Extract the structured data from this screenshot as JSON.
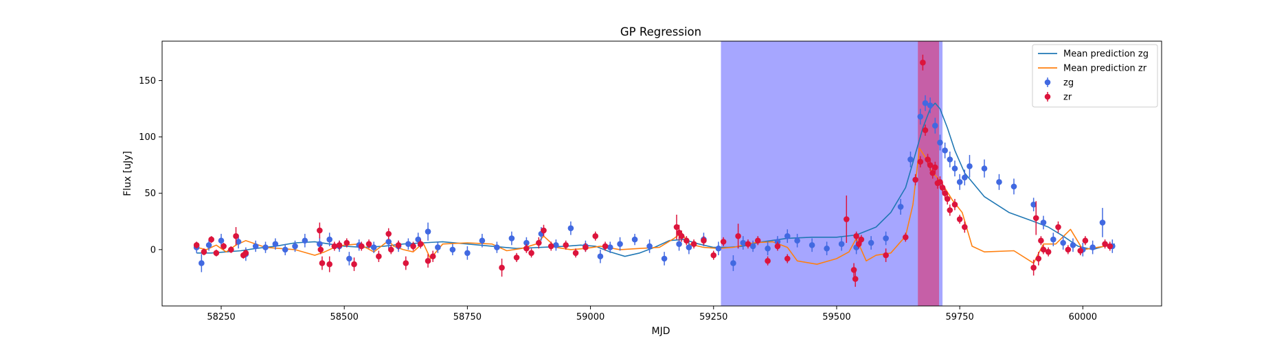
{
  "chart_data": {
    "type": "scatter",
    "title": "GP Regression",
    "xlabel": "MJD",
    "ylabel": "Flux [uJy]",
    "xlim": [
      58130,
      60160
    ],
    "ylim": [
      -50,
      185
    ],
    "xticks": [
      58250,
      58500,
      58750,
      59000,
      59250,
      59500,
      59750,
      60000
    ],
    "yticks": [
      0,
      50,
      100,
      150
    ],
    "grid": false,
    "legend_position": "upper right",
    "shaded_regions": [
      {
        "x0": 59265,
        "x1": 59715,
        "color": "#7777ff",
        "opacity": 0.65
      },
      {
        "x0": 59665,
        "x1": 59708,
        "color": "#e0245e",
        "opacity": 0.55
      }
    ],
    "series": [
      {
        "name": "Mean prediction zg",
        "kind": "line",
        "color": "#1f77b4",
        "x": [
          58200,
          58230,
          58260,
          58290,
          58320,
          58360,
          58400,
          58440,
          58470,
          58500,
          58540,
          58580,
          58620,
          58660,
          58700,
          58750,
          58800,
          58850,
          58900,
          58950,
          58980,
          59010,
          59040,
          59070,
          59100,
          59130,
          59160,
          59190,
          59220,
          59250,
          59280,
          59310,
          59350,
          59400,
          59450,
          59500,
          59540,
          59580,
          59610,
          59640,
          59660,
          59675,
          59690,
          59700,
          59710,
          59725,
          59740,
          59760,
          59800,
          59850,
          59900,
          59930,
          59960,
          59990,
          60020,
          60050,
          60065
        ],
        "y": [
          -3,
          -3,
          -2,
          -1,
          1,
          3,
          6,
          7,
          5,
          3,
          2,
          3,
          5,
          6,
          7,
          5,
          3,
          1,
          2,
          3,
          4,
          3,
          -2,
          -6,
          -3,
          2,
          8,
          9,
          5,
          2,
          2,
          3,
          7,
          10,
          11,
          11,
          13,
          20,
          33,
          55,
          85,
          108,
          125,
          130,
          125,
          108,
          88,
          68,
          47,
          33,
          25,
          20,
          12,
          3,
          0,
          4,
          5
        ]
      },
      {
        "name": "Mean prediction zr",
        "kind": "line",
        "color": "#ff7f0e",
        "x": [
          58200,
          58220,
          58240,
          58260,
          58280,
          58300,
          58340,
          58400,
          58440,
          58460,
          58480,
          58500,
          58530,
          58560,
          58590,
          58600,
          58620,
          58640,
          58660,
          58675,
          58700,
          58750,
          58800,
          58830,
          58860,
          58890,
          58905,
          58930,
          58960,
          58990,
          59020,
          59060,
          59100,
          59140,
          59170,
          59185,
          59200,
          59230,
          59260,
          59290,
          59330,
          59370,
          59400,
          59420,
          59460,
          59500,
          59525,
          59540,
          59550,
          59560,
          59580,
          59610,
          59640,
          59655,
          59668,
          59680,
          59692,
          59700,
          59715,
          59735,
          59755,
          59775,
          59800,
          59860,
          59900,
          59920,
          59945,
          59975,
          60000,
          60030,
          60060
        ],
        "y": [
          2,
          0,
          4,
          -2,
          4,
          8,
          2,
          0,
          -5,
          -2,
          2,
          4,
          5,
          -2,
          8,
          3,
          0,
          -2,
          6,
          -8,
          5,
          6,
          5,
          -1,
          1,
          5,
          12,
          2,
          0,
          1,
          3,
          0,
          1,
          2,
          10,
          15,
          5,
          2,
          1,
          2,
          6,
          7,
          2,
          -10,
          -13,
          -8,
          -2,
          10,
          0,
          -10,
          -5,
          -3,
          12,
          40,
          90,
          82,
          70,
          66,
          58,
          44,
          33,
          3,
          -2,
          -1,
          -12,
          5,
          5,
          18,
          0,
          2,
          4
        ]
      },
      {
        "name": "zg",
        "kind": "errorbar",
        "color": "#4169e1",
        "x": [
          58200,
          58210,
          58225,
          58250,
          58285,
          58300,
          58320,
          58340,
          58360,
          58380,
          58400,
          58420,
          58450,
          58470,
          58490,
          58510,
          58530,
          58560,
          58590,
          58610,
          58630,
          58650,
          58670,
          58690,
          58720,
          58750,
          58780,
          58810,
          58840,
          58870,
          58900,
          58930,
          58960,
          58990,
          59020,
          59040,
          59060,
          59090,
          59120,
          59150,
          59180,
          59200,
          59230,
          59260,
          59290,
          59310,
          59330,
          59360,
          59380,
          59400,
          59420,
          59450,
          59480,
          59510,
          59540,
          59570,
          59600,
          59630,
          59650,
          59670,
          59680,
          59690,
          59700,
          59710,
          59720,
          59730,
          59740,
          59750,
          59760,
          59770,
          59800,
          59830,
          59860,
          59900,
          59920,
          59940,
          59960,
          59980,
          60000,
          60020,
          60040,
          60060
        ],
        "y": [
          2,
          -12,
          4,
          8,
          7,
          -4,
          3,
          2,
          5,
          0,
          3,
          8,
          5,
          9,
          3,
          -8,
          4,
          2,
          7,
          3,
          5,
          9,
          16,
          2,
          0,
          -3,
          8,
          2,
          10,
          6,
          14,
          4,
          19,
          3,
          -6,
          2,
          5,
          9,
          3,
          -8,
          5,
          2,
          9,
          1,
          -12,
          6,
          3,
          1,
          7,
          12,
          8,
          4,
          1,
          5,
          2,
          6,
          10,
          38,
          80,
          118,
          130,
          128,
          110,
          95,
          88,
          80,
          72,
          60,
          64,
          74,
          72,
          60,
          56,
          40,
          24,
          9,
          6,
          4,
          0,
          2,
          24,
          3
        ],
        "err": [
          5,
          8,
          5,
          6,
          6,
          6,
          5,
          5,
          5,
          5,
          5,
          6,
          6,
          6,
          5,
          6,
          5,
          5,
          6,
          5,
          5,
          6,
          8,
          5,
          5,
          6,
          6,
          5,
          6,
          5,
          6,
          5,
          6,
          5,
          6,
          5,
          6,
          5,
          6,
          6,
          6,
          6,
          6,
          6,
          7,
          6,
          5,
          6,
          5,
          6,
          6,
          6,
          6,
          6,
          6,
          6,
          6,
          7,
          7,
          7,
          7,
          7,
          7,
          7,
          7,
          7,
          7,
          7,
          7,
          10,
          8,
          7,
          7,
          6,
          6,
          6,
          6,
          6,
          6,
          6,
          13,
          6
        ]
      },
      {
        "name": "zr",
        "kind": "errorbar",
        "color": "#dc143c",
        "x": [
          58200,
          58215,
          58230,
          58240,
          58255,
          58270,
          58280,
          58295,
          58300,
          58450,
          58452,
          58455,
          58470,
          58480,
          58490,
          58505,
          58520,
          58535,
          58550,
          58570,
          58590,
          58595,
          58610,
          58625,
          58640,
          58655,
          58670,
          58680,
          58820,
          58850,
          58870,
          58880,
          58895,
          58905,
          58920,
          58950,
          58970,
          58990,
          59010,
          59030,
          59175,
          59180,
          59185,
          59195,
          59210,
          59230,
          59250,
          59270,
          59300,
          59320,
          59340,
          59360,
          59380,
          59400,
          59520,
          59535,
          59538,
          59540,
          59545,
          59550,
          59600,
          59640,
          59660,
          59670,
          59675,
          59680,
          59685,
          59690,
          59695,
          59700,
          59705,
          59710,
          59715,
          59720,
          59725,
          59730,
          59740,
          59750,
          59760,
          59900,
          59905,
          59910,
          59915,
          59920,
          59930,
          59950,
          59970,
          59995,
          60005,
          60045,
          60055
        ],
        "y": [
          4,
          -2,
          9,
          -3,
          3,
          0,
          12,
          -5,
          -3,
          17,
          0,
          -12,
          -13,
          3,
          4,
          6,
          -13,
          3,
          5,
          -6,
          14,
          0,
          4,
          -12,
          3,
          5,
          -10,
          -6,
          -16,
          -7,
          1,
          -3,
          6,
          17,
          3,
          4,
          -3,
          2,
          12,
          3,
          20,
          15,
          12,
          8,
          5,
          8,
          -5,
          7,
          12,
          5,
          8,
          -10,
          3,
          -8,
          27,
          -18,
          -26,
          12,
          5,
          9,
          -5,
          11,
          62,
          78,
          166,
          106,
          80,
          75,
          68,
          73,
          59,
          60,
          55,
          50,
          45,
          35,
          40,
          27,
          20,
          -16,
          28,
          -8,
          8,
          0,
          -2,
          20,
          0,
          -1,
          8,
          5,
          3
        ],
        "err": [
          3,
          3,
          3,
          3,
          3,
          3,
          8,
          3,
          3,
          7,
          4,
          6,
          7,
          4,
          4,
          4,
          6,
          4,
          4,
          5,
          5,
          4,
          4,
          6,
          4,
          4,
          6,
          5,
          8,
          4,
          4,
          4,
          5,
          5,
          4,
          4,
          4,
          4,
          4,
          4,
          11,
          7,
          5,
          4,
          4,
          4,
          4,
          4,
          11,
          4,
          4,
          4,
          4,
          4,
          21,
          6,
          7,
          4,
          4,
          4,
          6,
          4,
          5,
          5,
          7,
          5,
          5,
          5,
          5,
          5,
          5,
          5,
          5,
          5,
          5,
          5,
          5,
          4,
          5,
          7,
          15,
          6,
          4,
          4,
          4,
          5,
          4,
          4,
          4,
          4,
          4
        ]
      }
    ]
  }
}
